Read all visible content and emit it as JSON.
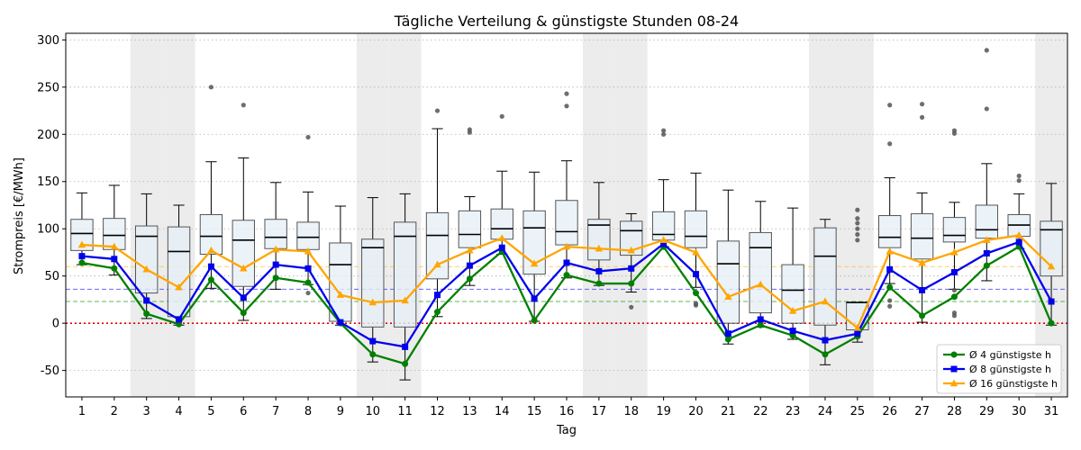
{
  "chart_data": {
    "type": "box+line",
    "title": "Tägliche Verteilung & günstigste Stunden 08-24",
    "xlabel": "Tag",
    "ylabel": "Strompreis [€/MWh]",
    "ylim": [
      -78,
      307
    ],
    "yticks": [
      -50,
      0,
      50,
      100,
      150,
      200,
      250,
      300
    ],
    "grid": "y dotted",
    "legend_position": "bottom-right",
    "categories": [
      "1",
      "2",
      "3",
      "4",
      "5",
      "6",
      "7",
      "8",
      "9",
      "10",
      "11",
      "12",
      "13",
      "14",
      "15",
      "16",
      "17",
      "18",
      "19",
      "20",
      "21",
      "22",
      "23",
      "24",
      "25",
      "26",
      "27",
      "28",
      "29",
      "30",
      "31"
    ],
    "weekend_days": [
      "3",
      "4",
      "10",
      "11",
      "17",
      "18",
      "24",
      "25",
      "31"
    ],
    "colors": {
      "s4": "#008000",
      "s8": "#0000ee",
      "s16": "#ffa500",
      "box_fill": "#e6f0f8",
      "box_edge": "#555555",
      "weekend_band": "#e0e0e0",
      "zero_line": "#e00000"
    },
    "reference_lines": [
      {
        "y": 0,
        "color": "#e00000",
        "style": "dotted"
      },
      {
        "y": 23,
        "color": "#2ca02c",
        "style": "dashed"
      },
      {
        "y": 36,
        "color": "#3333ff",
        "style": "dashed"
      },
      {
        "y": 60,
        "color": "#ffbf40",
        "style": "dashed"
      }
    ],
    "boxes": [
      {
        "wlo": 62,
        "q1": 77,
        "med": 95,
        "q3": 110,
        "whi": 138,
        "fliers": []
      },
      {
        "wlo": 51,
        "q1": 78,
        "med": 93,
        "q3": 111,
        "whi": 146,
        "fliers": []
      },
      {
        "wlo": 5,
        "q1": 32,
        "med": 92,
        "q3": 103,
        "whi": 137,
        "fliers": []
      },
      {
        "wlo": -2,
        "q1": 7,
        "med": 76,
        "q3": 102,
        "whi": 125,
        "fliers": []
      },
      {
        "wlo": 37,
        "q1": 73,
        "med": 92,
        "q3": 115,
        "whi": 171,
        "fliers": [
          250
        ]
      },
      {
        "wlo": 3,
        "q1": 39,
        "med": 88,
        "q3": 109,
        "whi": 175,
        "fliers": [
          231
        ]
      },
      {
        "wlo": 36,
        "q1": 79,
        "med": 91,
        "q3": 110,
        "whi": 149,
        "fliers": []
      },
      {
        "wlo": 41,
        "q1": 78,
        "med": 91,
        "q3": 107,
        "whi": 139,
        "fliers": [
          197,
          32
        ]
      },
      {
        "wlo": -2,
        "q1": 2,
        "med": 62,
        "q3": 85,
        "whi": 124,
        "fliers": []
      },
      {
        "wlo": -41,
        "q1": -4,
        "med": 80,
        "q3": 89,
        "whi": 133,
        "fliers": []
      },
      {
        "wlo": -60,
        "q1": -4,
        "med": 92,
        "q3": 107,
        "whi": 137,
        "fliers": []
      },
      {
        "wlo": 7,
        "q1": 47,
        "med": 93,
        "q3": 117,
        "whi": 206,
        "fliers": [
          225
        ]
      },
      {
        "wlo": 40,
        "q1": 80,
        "med": 94,
        "q3": 119,
        "whi": 134,
        "fliers": [
          205,
          202
        ]
      },
      {
        "wlo": 73,
        "q1": 89,
        "med": 100,
        "q3": 121,
        "whi": 161,
        "fliers": [
          219
        ]
      },
      {
        "wlo": 2,
        "q1": 52,
        "med": 101,
        "q3": 119,
        "whi": 160,
        "fliers": []
      },
      {
        "wlo": 48,
        "q1": 83,
        "med": 97,
        "q3": 130,
        "whi": 172,
        "fliers": [
          243,
          230
        ]
      },
      {
        "wlo": 40,
        "q1": 67,
        "med": 104,
        "q3": 110,
        "whi": 149,
        "fliers": []
      },
      {
        "wlo": 33,
        "q1": 72,
        "med": 98,
        "q3": 108,
        "whi": 116,
        "fliers": [
          17
        ]
      },
      {
        "wlo": 81,
        "q1": 88,
        "med": 94,
        "q3": 118,
        "whi": 152,
        "fliers": [
          204,
          200
        ]
      },
      {
        "wlo": 38,
        "q1": 80,
        "med": 92,
        "q3": 119,
        "whi": 159,
        "fliers": [
          21,
          19
        ]
      },
      {
        "wlo": -22,
        "q1": 0,
        "med": 63,
        "q3": 87,
        "whi": 141,
        "fliers": []
      },
      {
        "wlo": -4,
        "q1": 11,
        "med": 80,
        "q3": 96,
        "whi": 129,
        "fliers": []
      },
      {
        "wlo": -17,
        "q1": 0,
        "med": 35,
        "q3": 62,
        "whi": 122,
        "fliers": []
      },
      {
        "wlo": -44,
        "q1": -2,
        "med": 71,
        "q3": 101,
        "whi": 110,
        "fliers": []
      },
      {
        "wlo": -20,
        "q1": -7,
        "med": 22,
        "q3": 22,
        "whi": 22,
        "fliers": [
          120,
          111,
          106,
          100,
          94,
          88
        ]
      },
      {
        "wlo": 42,
        "q1": 80,
        "med": 91,
        "q3": 114,
        "whi": 154,
        "fliers": [
          231,
          190,
          24,
          18
        ]
      },
      {
        "wlo": 1,
        "q1": 68,
        "med": 90,
        "q3": 116,
        "whi": 138,
        "fliers": [
          232,
          218
        ]
      },
      {
        "wlo": 36,
        "q1": 86,
        "med": 93,
        "q3": 112,
        "whi": 128,
        "fliers": [
          204,
          201,
          35,
          11,
          8
        ]
      },
      {
        "wlo": 45,
        "q1": 90,
        "med": 99,
        "q3": 125,
        "whi": 169,
        "fliers": [
          289,
          227
        ]
      },
      {
        "wlo": 79,
        "q1": 92,
        "med": 104,
        "q3": 115,
        "whi": 137,
        "fliers": [
          156,
          151
        ]
      },
      {
        "wlo": -2,
        "q1": 50,
        "med": 99,
        "q3": 108,
        "whi": 148,
        "fliers": []
      }
    ],
    "series": [
      {
        "name": "Ø 4 günstigste h",
        "key": "s4",
        "marker": "circle",
        "values": [
          64,
          58,
          10,
          -1,
          46,
          11,
          48,
          43,
          0,
          -33,
          -43,
          12,
          47,
          76,
          3,
          51,
          42,
          42,
          81,
          32,
          -17,
          -2,
          -13,
          -33,
          -14,
          38,
          8,
          28,
          61,
          81,
          0
        ]
      },
      {
        "name": "Ø 8 günstigste h",
        "key": "s8",
        "marker": "square",
        "values": [
          71,
          68,
          24,
          4,
          60,
          27,
          62,
          58,
          1,
          -19,
          -25,
          30,
          61,
          80,
          26,
          64,
          55,
          58,
          84,
          52,
          -11,
          4,
          -8,
          -18,
          -11,
          57,
          35,
          54,
          74,
          86,
          23
        ]
      },
      {
        "name": "Ø 16 günstigste h",
        "key": "s16",
        "marker": "triangle",
        "values": [
          83,
          81,
          57,
          38,
          77,
          58,
          78,
          76,
          30,
          22,
          24,
          62,
          77,
          90,
          63,
          81,
          79,
          77,
          88,
          75,
          28,
          41,
          13,
          23,
          -5,
          76,
          64,
          75,
          88,
          93,
          60
        ]
      }
    ]
  }
}
